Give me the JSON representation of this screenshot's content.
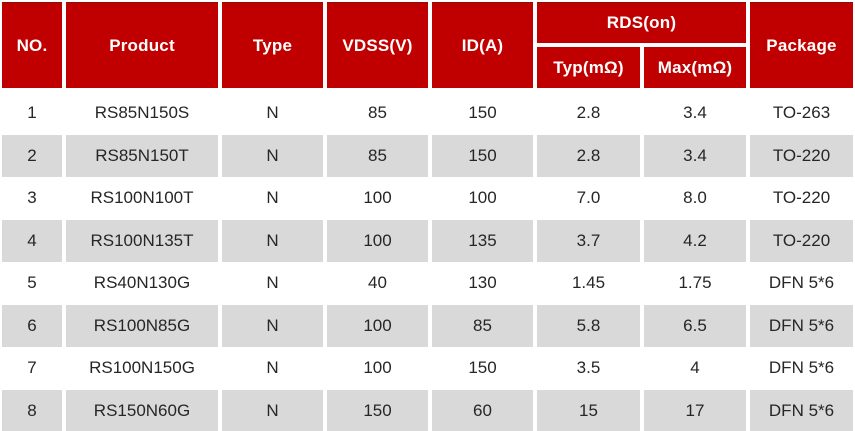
{
  "table": {
    "colors": {
      "header_bg": "#C00000",
      "header_text": "#FFFFFF",
      "row_alt_bg": "#D9D9D9",
      "body_text": "#262626",
      "page_bg": "#FFFFFF"
    },
    "headers": {
      "no": "NO.",
      "product": "Product",
      "type": "Type",
      "vdss": "VDSS(V)",
      "id": "ID(A)",
      "rds": "RDS(on)",
      "typ": "Typ(mΩ)",
      "max": "Max(mΩ)",
      "package": "Package"
    },
    "column_keys": [
      "no",
      "product",
      "type",
      "vdss",
      "id",
      "rds-typ",
      "rds-max",
      "package"
    ],
    "rows": [
      [
        "1",
        "RS85N150S",
        "N",
        "85",
        "150",
        "2.8",
        "3.4",
        "TO-263"
      ],
      [
        "2",
        "RS85N150T",
        "N",
        "85",
        "150",
        "2.8",
        "3.4",
        "TO-220"
      ],
      [
        "3",
        "RS100N100T",
        "N",
        "100",
        "100",
        "7.0",
        "8.0",
        "TO-220"
      ],
      [
        "4",
        "RS100N135T",
        "N",
        "100",
        "135",
        "3.7",
        "4.2",
        "TO-220"
      ],
      [
        "5",
        "RS40N130G",
        "N",
        "40",
        "130",
        "1.45",
        "1.75",
        "DFN 5*6"
      ],
      [
        "6",
        "RS100N85G",
        "N",
        "100",
        "85",
        "5.8",
        "6.5",
        "DFN 5*6"
      ],
      [
        "7",
        "RS100N150G",
        "N",
        "100",
        "150",
        "3.5",
        "4",
        "DFN 5*6"
      ],
      [
        "8",
        "RS150N60G",
        "N",
        "150",
        "60",
        "15",
        "17",
        "DFN 5*6"
      ]
    ]
  }
}
